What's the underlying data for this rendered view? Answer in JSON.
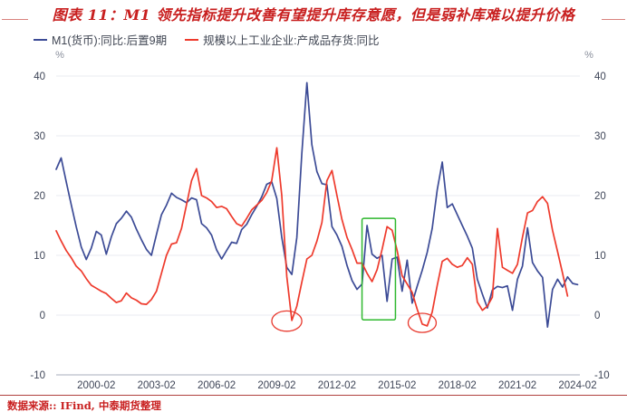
{
  "title": "图表 11：M1 领先指标提升改善有望提升库存意愿，但是弱补库难以提升价格",
  "source_note": "数据来源:: IFind, 中泰期货整理",
  "colors": {
    "title_red": "#c81e1e",
    "flank_line": "#d9827d",
    "footer_rule": "#b0413e",
    "grid": "#e9ebf2",
    "axis_line": "#b9bdc9",
    "tick_text": "#3e4557",
    "unit_text": "#8a8f9c",
    "legend_text": "#3f4552"
  },
  "chart_data": {
    "type": "line",
    "title": "图表 11：M1 领先指标提升改善有望提升库存意愿，但是弱补库难以提升价格",
    "xlabel": "",
    "ylabel": "%",
    "unit_label": "%",
    "ylim": [
      -10,
      40
    ],
    "yticks": [
      40,
      30,
      20,
      10,
      0,
      -10
    ],
    "xticks": [
      "2000-02",
      "2003-02",
      "2006-02",
      "2009-02",
      "2012-02",
      "2015-02",
      "2018-02",
      "2021-02",
      "2024-02"
    ],
    "grid": true,
    "legend_position": "top-left",
    "x": [
      "1998-02",
      "1998-05",
      "1998-08",
      "1998-11",
      "1999-02",
      "1999-05",
      "1999-08",
      "1999-11",
      "2000-02",
      "2000-05",
      "2000-08",
      "2000-11",
      "2001-02",
      "2001-05",
      "2001-08",
      "2001-11",
      "2002-02",
      "2002-05",
      "2002-08",
      "2002-11",
      "2003-02",
      "2003-05",
      "2003-08",
      "2003-11",
      "2004-02",
      "2004-05",
      "2004-08",
      "2004-11",
      "2005-02",
      "2005-05",
      "2005-08",
      "2005-11",
      "2006-02",
      "2006-05",
      "2006-08",
      "2006-11",
      "2007-02",
      "2007-05",
      "2007-08",
      "2007-11",
      "2008-02",
      "2008-05",
      "2008-08",
      "2008-11",
      "2009-02",
      "2009-05",
      "2009-08",
      "2009-11",
      "2010-02",
      "2010-05",
      "2010-08",
      "2010-11",
      "2011-02",
      "2011-05",
      "2011-08",
      "2011-11",
      "2012-02",
      "2012-05",
      "2012-08",
      "2012-11",
      "2013-02",
      "2013-05",
      "2013-08",
      "2013-11",
      "2014-02",
      "2014-05",
      "2014-08",
      "2014-11",
      "2015-02",
      "2015-05",
      "2015-08",
      "2015-11",
      "2016-02",
      "2016-05",
      "2016-08",
      "2016-11",
      "2017-02",
      "2017-05",
      "2017-08",
      "2017-11",
      "2018-02",
      "2018-05",
      "2018-08",
      "2018-11",
      "2019-02",
      "2019-05",
      "2019-08",
      "2019-11",
      "2020-02",
      "2020-05",
      "2020-08",
      "2020-11",
      "2021-02",
      "2021-05",
      "2021-08",
      "2021-11",
      "2022-02",
      "2022-05",
      "2022-08",
      "2022-11",
      "2023-02",
      "2023-05",
      "2023-08",
      "2023-11",
      "2024-02"
    ],
    "series": [
      {
        "name": "M1(货币):同比:后置9期",
        "color": "#3c4b96",
        "values": [
          24.4,
          26.3,
          22.3,
          18.5,
          14.8,
          11.4,
          9.3,
          11.2,
          14.0,
          13.4,
          10.2,
          13.1,
          15.3,
          16.2,
          17.4,
          16.4,
          14.4,
          12.6,
          11.0,
          10.0,
          13.5,
          16.8,
          18.4,
          20.4,
          19.7,
          19.3,
          18.8,
          19.6,
          19.3,
          15.3,
          14.6,
          13.4,
          10.9,
          9.4,
          10.8,
          12.2,
          12.0,
          14.3,
          15.2,
          16.8,
          18.2,
          19.8,
          21.9,
          22.3,
          19.5,
          13.0,
          8.0,
          6.8,
          13.0,
          27.0,
          38.9,
          28.5,
          24.0,
          22.0,
          21.8,
          14.8,
          13.4,
          11.5,
          8.3,
          5.8,
          4.3,
          5.2,
          15.0,
          10.2,
          9.5,
          10.0,
          2.3,
          9.4,
          9.7,
          4.0,
          9.2,
          2.0,
          4.8,
          7.5,
          10.5,
          14.5,
          21.0,
          25.6,
          18.0,
          18.6,
          16.8,
          15.0,
          13.2,
          11.2,
          6.0,
          3.5,
          1.2,
          4.2,
          4.8,
          4.6,
          4.9,
          0.8,
          6.0,
          8.2,
          14.6,
          8.8,
          7.4,
          6.3,
          -2.0,
          4.3,
          6.0,
          4.7,
          6.4,
          5.3,
          5.1
        ]
      },
      {
        "name": "规模以上工业企业:产成品存货:同比",
        "color": "#ee3a2c",
        "values": [
          14.1,
          12.4,
          10.8,
          9.6,
          8.2,
          7.4,
          6.1,
          5.0,
          4.5,
          4.0,
          3.6,
          2.8,
          2.1,
          2.4,
          3.7,
          2.9,
          2.5,
          1.9,
          1.8,
          2.6,
          4.0,
          7.0,
          10.0,
          11.9,
          12.1,
          14.5,
          18.5,
          22.5,
          24.5,
          20.0,
          19.6,
          19.0,
          18.0,
          18.2,
          17.8,
          16.5,
          15.3,
          14.9,
          16.2,
          17.6,
          18.4,
          19.2,
          20.5,
          22.5,
          28.0,
          20.0,
          6.5,
          -0.9,
          1.5,
          5.5,
          9.4,
          10.0,
          12.4,
          15.5,
          22.5,
          24.2,
          20.0,
          16.0,
          13.0,
          11.0,
          8.7,
          8.7,
          7.0,
          5.6,
          7.6,
          11.0,
          14.8,
          14.2,
          10.8,
          6.6,
          5.2,
          3.8,
          1.0,
          -1.5,
          -1.8,
          0.5,
          5.0,
          9.0,
          9.5,
          8.5,
          8.0,
          8.3,
          9.6,
          8.5,
          2.2,
          0.8,
          1.5,
          3.0,
          14.5,
          8.0,
          7.5,
          7.0,
          8.5,
          13.0,
          17.1,
          17.5,
          19.0,
          19.8,
          18.7,
          14.2,
          10.6,
          7.0,
          3.2,
          null,
          null
        ]
      }
    ],
    "annotations": [
      {
        "type": "ellipse",
        "cx": "2009-08",
        "cy": -1.0,
        "rx_years": 0.75,
        "ry_units": 1.7,
        "color": "#e8392e"
      },
      {
        "type": "ellipse",
        "cx": "2016-05",
        "cy": -1.3,
        "rx_years": 0.7,
        "ry_units": 1.6,
        "color": "#e8392e"
      },
      {
        "type": "rect",
        "x1": "2013-05",
        "x2": "2015-01",
        "y1": -0.8,
        "y2": 16.2,
        "color": "#2eb82e"
      }
    ]
  }
}
